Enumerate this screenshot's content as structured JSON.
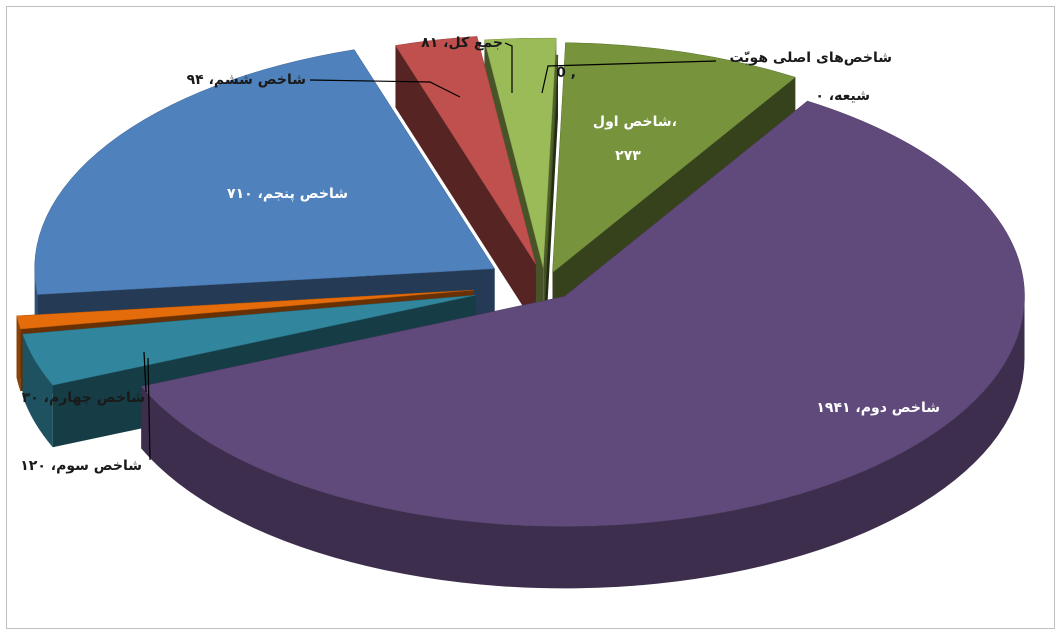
{
  "chart_data": {
    "type": "pie",
    "variant": "3d-exploded",
    "title": "",
    "legend": "none",
    "slices": [
      {
        "name": "شاخص‌های اصلی هویّت شیعه",
        "value": 0,
        "label": "شاخص‌های اصلی هویّت",
        "label2": "شیعه، ۰",
        "color": "#4f6228"
      },
      {
        "name": "شاخص اول",
        "value": 273,
        "label": "شاخص اول،",
        "label2": "۲۷۳",
        "color": "#77933c"
      },
      {
        "name": "شاخص دوم",
        "value": 1941,
        "label": "شاخص دوم، ۱۹۴۱",
        "label2": "",
        "color": "#604a7b"
      },
      {
        "name": "شاخص سوم",
        "value": 120,
        "label": "شاخص سوم، ۱۲۰",
        "label2": "",
        "color": "#31859c"
      },
      {
        "name": "شاخص چهارم",
        "value": 30,
        "label": "شاخص چهارم، ۳۰",
        "label2": "",
        "color": "#e46c0a"
      },
      {
        "name": "شاخص پنجم",
        "value": 710,
        "label": "شاخص پنجم، ۷۱۰",
        "label2": "",
        "color": "#4f81bd"
      },
      {
        "name": "شاخص ششم",
        "value": 94,
        "label": "شاخص ششم، ۹۴",
        "label2": "",
        "color": "#c0504d"
      },
      {
        "name": "جمع کل",
        "value": 81,
        "label": "جمع کل، ۸۱",
        "label2": "",
        "color": "#9bbb59"
      }
    ],
    "extra_label": "0 ,"
  }
}
